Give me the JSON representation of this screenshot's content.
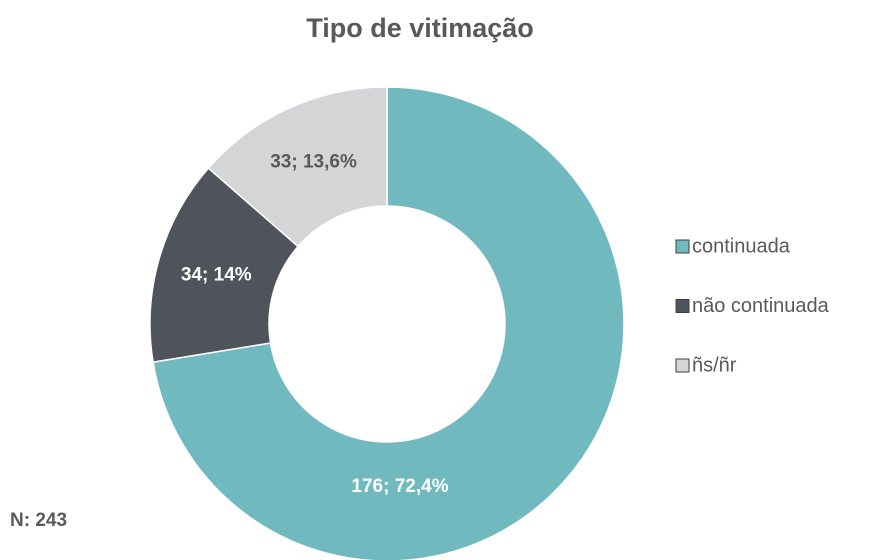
{
  "chart_data": {
    "type": "donut",
    "title": "Tipo de vitimação",
    "categories": [
      "continuada",
      "não continuada",
      "ñs/ñr"
    ],
    "values": [
      176,
      34,
      33
    ],
    "value_labels": [
      "176; 72,4%",
      "34; 14%",
      "33; 13,6%"
    ],
    "colors": [
      "#6fb9bf",
      "#4f535c",
      "#d4d5d6"
    ],
    "legend": "right",
    "annotation": "N: 243"
  }
}
